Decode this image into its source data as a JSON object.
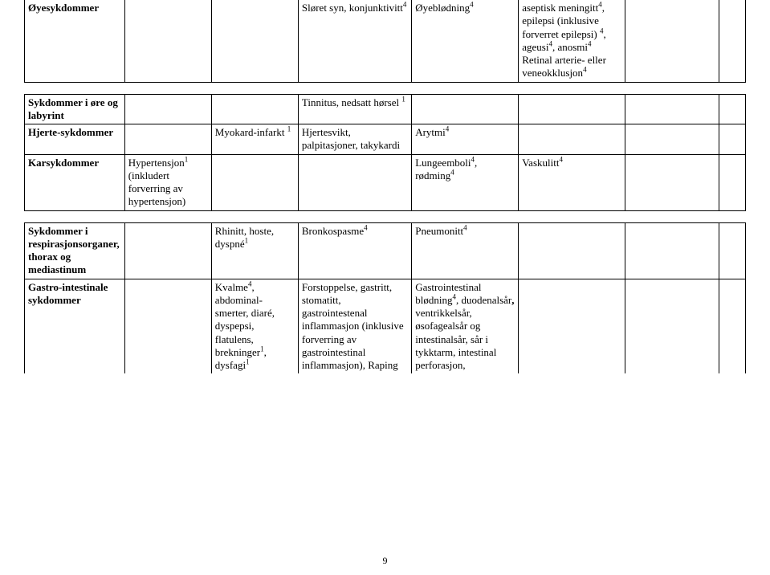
{
  "table1": {
    "row1": {
      "c1": "Øyesykdommer",
      "c4_a": "Sløret syn, konjunktivitt",
      "c4_sup": "4",
      "c5_a": "Øyeblødning",
      "c5_sup": "4",
      "c6_pre": "aseptisk meningitt",
      "c6_sup1": "4",
      "c6_mid": ", epilepsi (inklusive forverret epilepsi) ",
      "c6_sup2": "4",
      "c6_mid2": ", ageusi",
      "c6_sup3": "4",
      "c6_mid3": ", anosmi",
      "c6_sup4": "4",
      "c6_line2": "Retinal arterie- eller veneokklusjon",
      "c6_line2_sup": "4"
    }
  },
  "table2": {
    "row1": {
      "c1": "Sykdommer i øre og labyrint",
      "c4_a": "Tinnitus, nedsatt hørsel ",
      "c4_sup": "1"
    },
    "row2": {
      "c1": "Hjerte-sykdommer",
      "c3_a": "Myokard-infarkt ",
      "c3_sup": "1",
      "c4": "Hjertesvikt, palpitasjoner, takykardi",
      "c5_a": "Arytmi",
      "c5_sup": "4"
    },
    "row3": {
      "c1": "Karsykdommer",
      "c2_a": "Hypertensjon",
      "c2_sup": "1",
      "c2_b": " (inkludert forverring av hypertensjon)",
      "c5_a": "Lungeemboli",
      "c5_sup1": "4",
      "c5_b": ", rødming",
      "c5_sup2": "4",
      "c6_a": "Vaskulitt",
      "c6_sup": "4"
    }
  },
  "table3": {
    "row1": {
      "c1": "Sykdommer i respirasjonsorganer, thorax og mediastinum",
      "c3_a": "Rhinitt, hoste, dyspné",
      "c3_sup": "1",
      "c4_a": "Bronkospasme",
      "c4_sup": "4",
      "c5_a": "Pneumonitt",
      "c5_sup": "4"
    },
    "row2": {
      "c1": "Gastro-intestinale sykdommer",
      "c3_a": "Kvalme",
      "c3_sup1": "4",
      "c3_b": ", abdominal-smerter, diaré, dyspepsi, flatulens, brekninger",
      "c3_sup2": "1",
      "c3_c": ", dysfagi",
      "c3_sup3": "1",
      "c4": "Forstoppelse, gastritt, stomatitt, gastrointestenal inflammasjon (inklusive forverring av gastrointestinal inflammasjon), Raping",
      "c5_a": "Gastrointestinal blødning",
      "c5_sup": "4",
      "c5_b": ", duodenalsår",
      "c5_c": " ventrikkelsår, øsofagealsår og intestinalsår, sår i tykktarm, intestinal perforasjon,"
    }
  },
  "page_number": "9"
}
